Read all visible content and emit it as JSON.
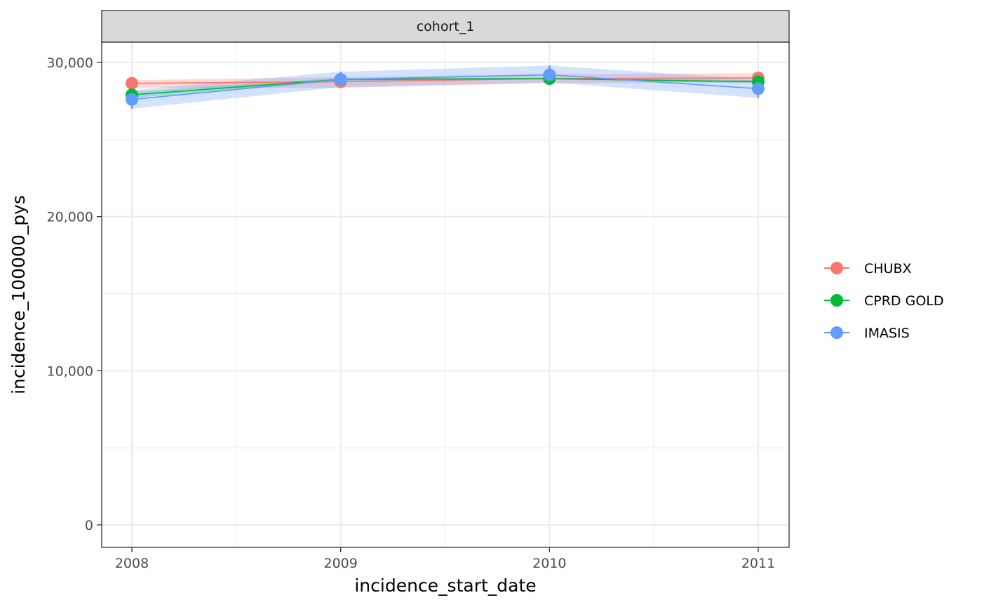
{
  "chart_data": {
    "type": "line",
    "facet_label": "cohort_1",
    "xlabel": "incidence_start_date",
    "ylabel": "incidence_100000_pys",
    "x": [
      "2008",
      "2009",
      "2010",
      "2011"
    ],
    "ylim": [
      -1500,
      31500
    ],
    "yticks": [
      0,
      10000,
      20000,
      30000
    ],
    "ytick_labels": [
      "0",
      "10,000",
      "20,000",
      "30,000"
    ],
    "grid": true,
    "legend_position": "right",
    "series": [
      {
        "name": "CHUBX",
        "color": "#F8766D",
        "values": [
          28650,
          28750,
          28950,
          29000
        ],
        "lower": [
          28350,
          28350,
          28650,
          28700
        ],
        "upper": [
          28850,
          29050,
          29250,
          29300
        ]
      },
      {
        "name": "CPRD GOLD",
        "color": "#00BA38",
        "values": [
          27900,
          28900,
          28950,
          28750
        ],
        "lower": [
          27700,
          28800,
          28900,
          28650
        ],
        "upper": [
          28100,
          29000,
          29000,
          28850
        ]
      },
      {
        "name": "IMASIS",
        "color": "#619CFF",
        "values": [
          27600,
          28900,
          29200,
          28300
        ],
        "lower": [
          27000,
          28400,
          28700,
          27700
        ],
        "upper": [
          28200,
          29400,
          29800,
          28900
        ]
      }
    ]
  }
}
